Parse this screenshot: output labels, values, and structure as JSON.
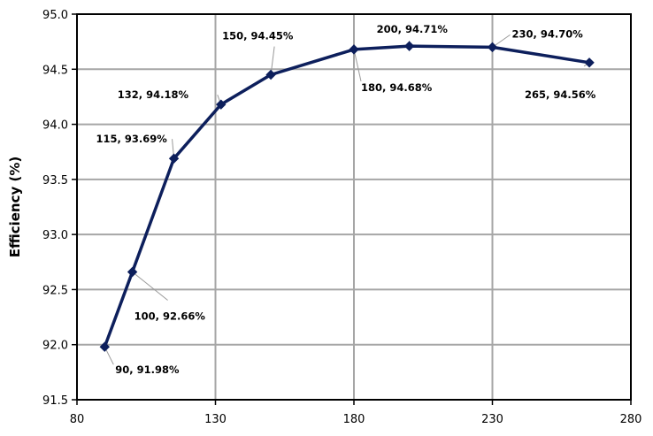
{
  "chart_data": {
    "type": "line",
    "title": "",
    "xlabel": "",
    "ylabel": "Efficiency (%)",
    "xlim": [
      80,
      280
    ],
    "ylim": [
      91.5,
      95.0
    ],
    "xticks": [
      "80",
      "130",
      "180",
      "230",
      "280"
    ],
    "yticks": [
      "91.5",
      "92.0",
      "92.5",
      "93.0",
      "93.5",
      "94.0",
      "94.5",
      "95.0"
    ],
    "grid": true,
    "legend": "none",
    "line_color": "#0d1f5c",
    "grid_color": "#a6a6a6",
    "marker": "diamond",
    "series": [
      {
        "x": [
          90,
          100,
          115,
          132,
          150,
          180,
          200,
          230,
          265
        ],
        "y": [
          91.98,
          92.66,
          93.69,
          94.18,
          94.45,
          94.68,
          94.71,
          94.7,
          94.56
        ]
      }
    ],
    "data_labels": [
      "90, 91.98%",
      "100, 92.66%",
      "115, 93.69%",
      "132, 94.18%",
      "150, 94.45%",
      "180, 94.68%",
      "200, 94.71%",
      "230, 94.70%",
      "265, 94.56%"
    ]
  }
}
